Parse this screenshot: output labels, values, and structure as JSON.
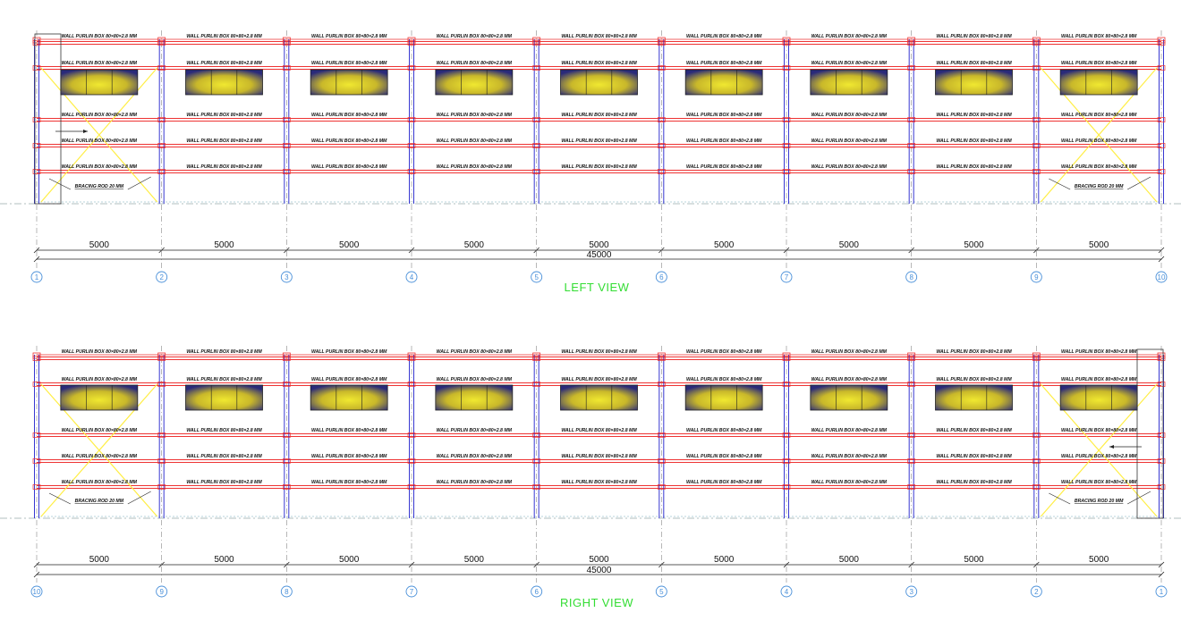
{
  "views": [
    {
      "id": "left",
      "title": "LEFT VIEW",
      "grid_labels": [
        "1",
        "2",
        "3",
        "4",
        "5",
        "6",
        "7",
        "8",
        "9",
        "10"
      ],
      "bay_dimension": "5000",
      "total_dimension": "45000",
      "purlin_label": "WALL PURLIN BOX 80×80×2.8 MM",
      "bracing_label": "BRACING ROD 20 MM",
      "braced_bays": [
        0,
        8
      ]
    },
    {
      "id": "right",
      "title": "RIGHT VIEW",
      "grid_labels": [
        "10",
        "9",
        "8",
        "7",
        "6",
        "5",
        "4",
        "3",
        "2",
        "1"
      ],
      "bay_dimension": "5000",
      "total_dimension": "45000",
      "purlin_label": "WALL PURLIN BOX 80×80×2.8 MM",
      "bracing_label": "BRACING ROD 20 MM",
      "braced_bays": [
        0,
        8
      ]
    }
  ],
  "colors": {
    "purlin": "#ee3333",
    "column": "#2222cc",
    "bracing": "#ffee44",
    "grid_line": "#888888",
    "window_center": "#e8e020",
    "window_edge": "#2a2a7a",
    "grid_bubble": "#4a90d9",
    "view_title": "#33dd33"
  }
}
